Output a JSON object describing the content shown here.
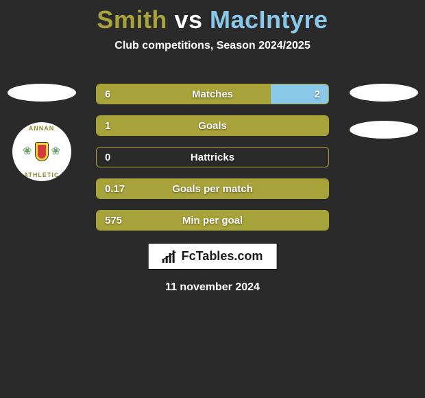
{
  "title": {
    "player_a": "Smith",
    "vs": " vs ",
    "player_b": "MacIntyre",
    "color_a": "#a8a23a",
    "color_vs": "#ffffff",
    "color_b": "#89c8e8"
  },
  "subtitle": "Club competitions, Season 2024/2025",
  "colors": {
    "fill_a": "#a8a23a",
    "fill_b": "#89c8e8",
    "border": "#a8a23a",
    "background": "#2a2a2a",
    "ellipse": "#ffffff"
  },
  "crest": {
    "top_text": "ANNAN",
    "bottom_text": "ATHLETIC",
    "thistle_glyph": "❀",
    "thistle_color": "#6aa06a"
  },
  "bars": [
    {
      "label": "Matches",
      "left_val": "6",
      "right_val": "2",
      "left_pct": 75,
      "right_pct": 25
    },
    {
      "label": "Goals",
      "left_val": "1",
      "right_val": "",
      "left_pct": 100,
      "right_pct": 0
    },
    {
      "label": "Hattricks",
      "left_val": "0",
      "right_val": "",
      "left_pct": 0,
      "right_pct": 0
    },
    {
      "label": "Goals per match",
      "left_val": "0.17",
      "right_val": "",
      "left_pct": 100,
      "right_pct": 0
    },
    {
      "label": "Min per goal",
      "left_val": "575",
      "right_val": "",
      "left_pct": 100,
      "right_pct": 0
    }
  ],
  "brand": "FcTables.com",
  "date": "11 november 2024"
}
